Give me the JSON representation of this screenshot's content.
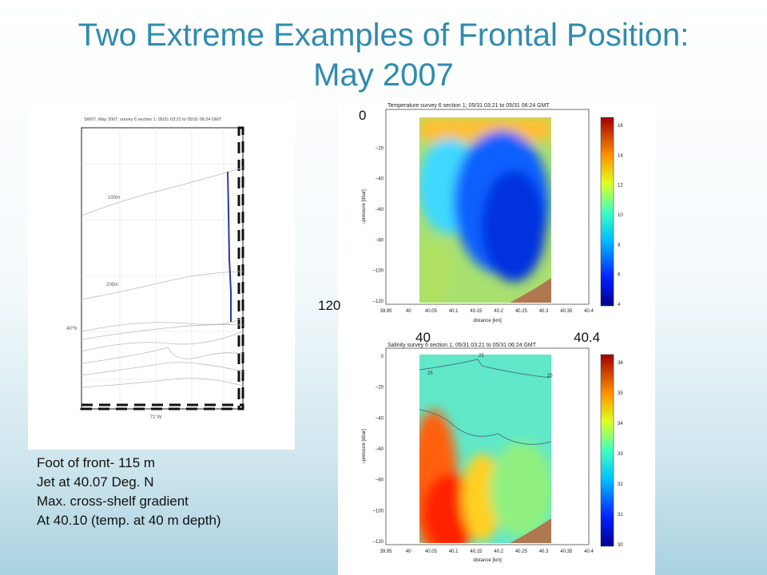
{
  "title": [
    "Two Extreme Examples of Frontal Position:",
    "May 2007"
  ],
  "map": {
    "title": "SW07, May 2007,  survey 6 section 1; 05/31 03:21 to 05/31 06:24 GMT",
    "contour_labels": [
      "100m",
      "200m"
    ],
    "lat_label": "40°N",
    "lon_label": "71°W"
  },
  "temperature": {
    "title": "Temperature survey 6 section 1; 05/31 03:21 to 05/31 06:24 GMT",
    "ylabel": "–pressure [dbar]",
    "xlabel": "distance [km]",
    "yticks": [
      "–20",
      "–40",
      "–60",
      "–80",
      "–100",
      "–120"
    ],
    "xticks": [
      "39.95",
      "40",
      "40.05",
      "40.1",
      "40.15",
      "40.2",
      "40.25",
      "40.3",
      "40.35",
      "40.4"
    ],
    "colorbar_ticks": [
      "16",
      "14",
      "12",
      "10",
      "8",
      "6",
      "4"
    ]
  },
  "salinity": {
    "title": "Salinity survey 6 section 1; 05/31 03:21 to 05/31 06:24 GMT",
    "ylabel": "–pressure [dbar]",
    "xlabel": "distance [km]",
    "yticks": [
      "0",
      "–20",
      "–40",
      "–60",
      "–80",
      "–100",
      "–120"
    ],
    "xticks": [
      "39.95",
      "40",
      "40.05",
      "40.1",
      "40.15",
      "40.2",
      "40.25",
      "40.3",
      "40.35",
      "40.4"
    ],
    "contour_labels": [
      "25",
      "25",
      "25"
    ],
    "colorbar_ticks": [
      "36",
      "35",
      "34",
      "33",
      "32",
      "31",
      "30"
    ]
  },
  "overlay_labels": {
    "depth_top": "0",
    "depth_bottom": "120",
    "x_left": "40",
    "x_right": "40.4"
  },
  "notes": [
    "Foot of front- 115 m",
    "Jet at 40.07 Deg. N",
    "Max. cross-shelf gradient",
    "At 40.10 (temp. at 40 m depth)"
  ]
}
